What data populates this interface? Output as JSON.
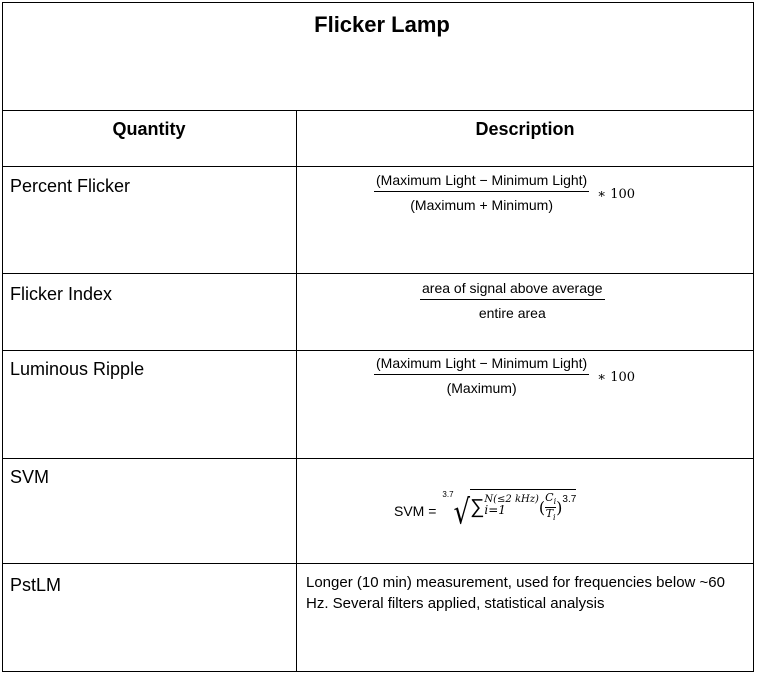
{
  "title": "Flicker Lamp",
  "headers": {
    "quantity": "Quantity",
    "description": "Description"
  },
  "rows": [
    {
      "quantity": "Percent Flicker",
      "numerator": "(Maximum Light − Minimum Light)",
      "denominator": "(Maximum + Minimum)",
      "multiplier": "∗ 100"
    },
    {
      "quantity": "Flicker Index",
      "numerator": "area of signal above average",
      "denominator": "entire area"
    },
    {
      "quantity": "Luminous Ripple",
      "numerator": "(Maximum Light − Minimum Light)",
      "denominator": "(Maximum)",
      "multiplier": "∗ 100"
    },
    {
      "quantity": "SVM",
      "formula": {
        "lhs": "SVM =",
        "root_index": "3.7",
        "sum": "∑",
        "upper": "N(≤2 kHz)",
        "lower": "i=1",
        "frac_num": "C",
        "frac_num_sub": "i",
        "frac_den": "T",
        "frac_den_sub": "i",
        "exponent": "3.7"
      }
    },
    {
      "quantity": "PstLM",
      "description": "Longer (10 min) measurement, used for frequencies below ~60 Hz. Several filters applied, statistical analysis"
    }
  ]
}
